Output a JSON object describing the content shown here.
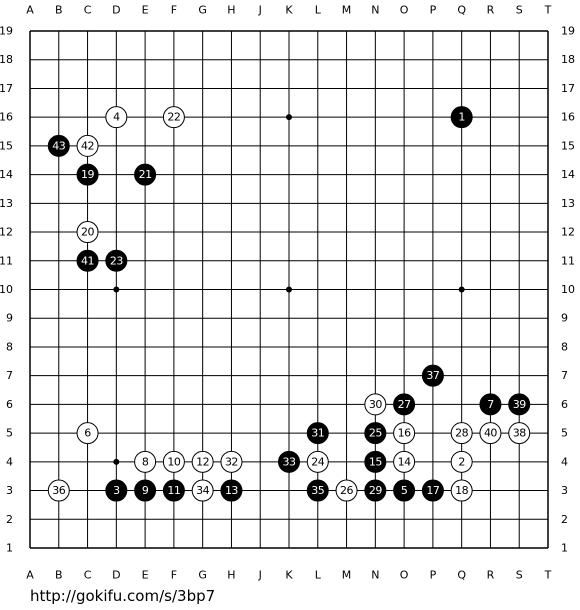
{
  "board": {
    "columns": [
      "A",
      "B",
      "C",
      "D",
      "E",
      "F",
      "G",
      "H",
      "J",
      "K",
      "L",
      "M",
      "N",
      "O",
      "P",
      "Q",
      "R",
      "S",
      "T"
    ],
    "rows": [
      "19",
      "18",
      "17",
      "16",
      "15",
      "14",
      "13",
      "12",
      "11",
      "10",
      "9",
      "8",
      "7",
      "6",
      "5",
      "4",
      "3",
      "2",
      "1"
    ],
    "stones": [
      {
        "point": "Q16",
        "color": "black",
        "number": 1
      },
      {
        "point": "Q4",
        "color": "white",
        "number": 2
      },
      {
        "point": "D3",
        "color": "black",
        "number": 3
      },
      {
        "point": "D16",
        "color": "white",
        "number": 4
      },
      {
        "point": "O3",
        "color": "black",
        "number": 5
      },
      {
        "point": "C5",
        "color": "white",
        "number": 6
      },
      {
        "point": "R6",
        "color": "black",
        "number": 7
      },
      {
        "point": "E4",
        "color": "white",
        "number": 8
      },
      {
        "point": "E3",
        "color": "black",
        "number": 9
      },
      {
        "point": "F4",
        "color": "white",
        "number": 10
      },
      {
        "point": "F3",
        "color": "black",
        "number": 11
      },
      {
        "point": "G4",
        "color": "white",
        "number": 12
      },
      {
        "point": "H3",
        "color": "black",
        "number": 13
      },
      {
        "point": "O4",
        "color": "white",
        "number": 14
      },
      {
        "point": "N4",
        "color": "black",
        "number": 15
      },
      {
        "point": "O5",
        "color": "white",
        "number": 16
      },
      {
        "point": "P3",
        "color": "black",
        "number": 17
      },
      {
        "point": "Q3",
        "color": "white",
        "number": 18
      },
      {
        "point": "C14",
        "color": "black",
        "number": 19
      },
      {
        "point": "C12",
        "color": "white",
        "number": 20
      },
      {
        "point": "E14",
        "color": "black",
        "number": 21
      },
      {
        "point": "F16",
        "color": "white",
        "number": 22
      },
      {
        "point": "D11",
        "color": "black",
        "number": 23
      },
      {
        "point": "L4",
        "color": "white",
        "number": 24
      },
      {
        "point": "N5",
        "color": "black",
        "number": 25
      },
      {
        "point": "M3",
        "color": "white",
        "number": 26
      },
      {
        "point": "O6",
        "color": "black",
        "number": 27
      },
      {
        "point": "Q5",
        "color": "white",
        "number": 28
      },
      {
        "point": "N3",
        "color": "black",
        "number": 29
      },
      {
        "point": "N6",
        "color": "white",
        "number": 30
      },
      {
        "point": "L5",
        "color": "black",
        "number": 31
      },
      {
        "point": "H4",
        "color": "white",
        "number": 32
      },
      {
        "point": "K4",
        "color": "black",
        "number": 33
      },
      {
        "point": "G3",
        "color": "white",
        "number": 34
      },
      {
        "point": "L3",
        "color": "black",
        "number": 35
      },
      {
        "point": "B3",
        "color": "white",
        "number": 36
      },
      {
        "point": "P7",
        "color": "black",
        "number": 37
      },
      {
        "point": "S5",
        "color": "white",
        "number": 38
      },
      {
        "point": "S6",
        "color": "black",
        "number": 39
      },
      {
        "point": "R5",
        "color": "white",
        "number": 40
      },
      {
        "point": "C11",
        "color": "black",
        "number": 41
      },
      {
        "point": "C15",
        "color": "white",
        "number": 42
      },
      {
        "point": "B15",
        "color": "black",
        "number": 43
      }
    ]
  },
  "url": "http://gokifu.com/s/3bp7"
}
